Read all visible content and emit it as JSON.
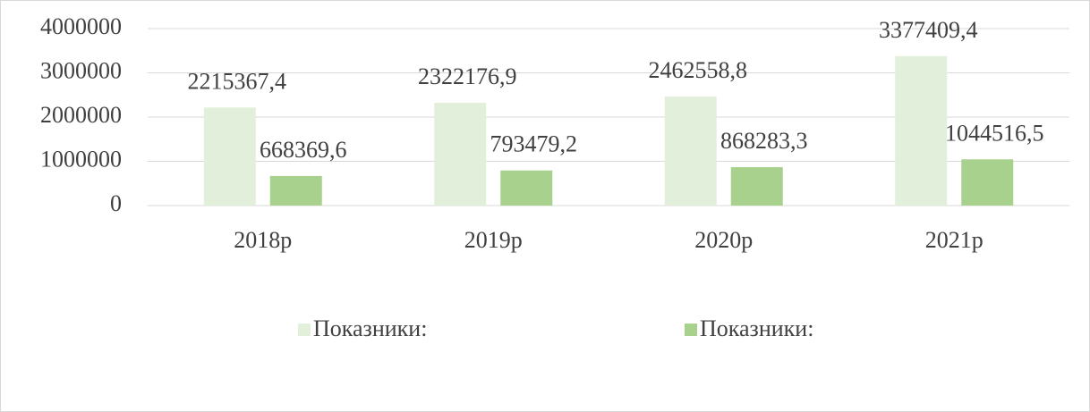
{
  "chart_data": {
    "type": "bar",
    "categories": [
      "2018р",
      "2019р",
      "2020р",
      "2021р"
    ],
    "series": [
      {
        "name": "Показники:",
        "color": "#e2efda",
        "values": [
          2215367.4,
          2322176.9,
          2462558.8,
          3377409.4
        ],
        "value_labels": [
          "2215367,4",
          "2322176,9",
          "2462558,8",
          "3377409,4"
        ]
      },
      {
        "name": "Показники:",
        "color": "#a9d18e",
        "values": [
          668369.6,
          793479.2,
          868283.3,
          1044516.5
        ],
        "value_labels": [
          "668369,6",
          "793479,2",
          "868283,3",
          "1044516,5"
        ]
      }
    ],
    "ylim": [
      0,
      4000000
    ],
    "yticks": [
      0,
      1000000,
      2000000,
      3000000,
      4000000
    ],
    "grid": true,
    "legend": "bottom"
  }
}
